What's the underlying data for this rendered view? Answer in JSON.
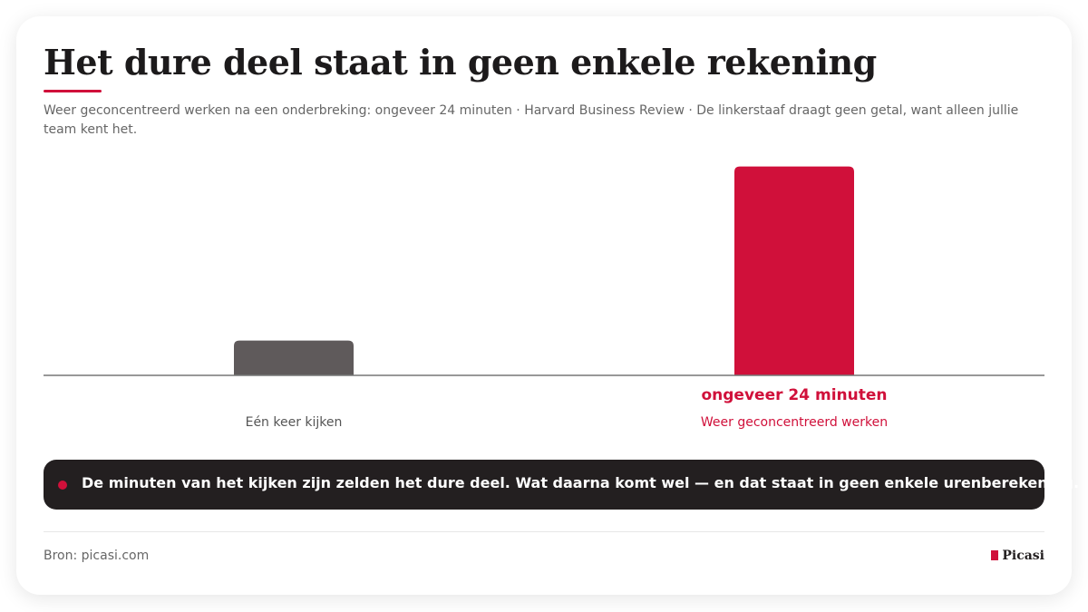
{
  "chart_data": {
    "type": "bar",
    "title": "Het dure deel staat in geen enkele rekening",
    "subtitle": "Weer geconcentreerd werken na een onderbreking: ongeveer 24 minuten · Harvard Business Review · De linkerstaaf draagt geen getal, want alleen jullie team kent het.",
    "categories": [
      "Eén keer kijken",
      "Weer geconcentreerd werken"
    ],
    "values": [
      4,
      24
    ],
    "value_labels": [
      null,
      "ongeveer 24 minuten"
    ],
    "colors": [
      "#5f5a5b",
      "#d0103a"
    ],
    "ylim": [
      0,
      25
    ],
    "callout": "De minuten van het kijken zijn zelden het dure deel. Wat daarna komt wel — en dat staat in geen enkele urenberekening.",
    "source": "Bron: picasi.com",
    "brand": "Picasi"
  }
}
